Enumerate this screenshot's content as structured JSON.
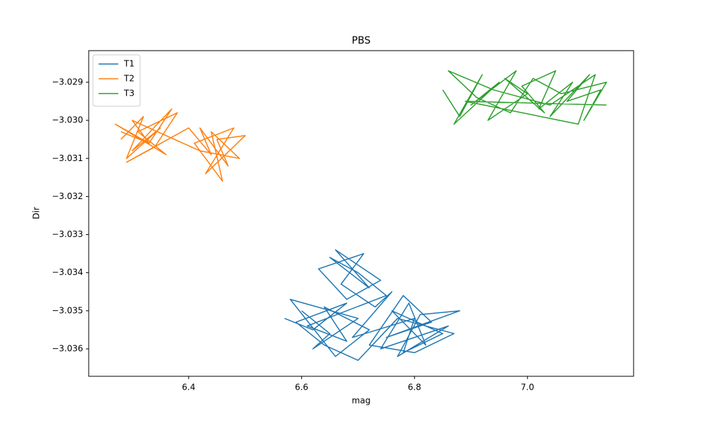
{
  "chart_data": {
    "type": "line",
    "title": "PBS",
    "xlabel": "mag",
    "ylabel": "Dir",
    "xlim": [
      6.223,
      7.188
    ],
    "ylim": [
      -3.03672,
      -3.02817
    ],
    "xticks": [
      6.4,
      6.6,
      6.8,
      {
        "value": 7,
        "label": "7.0"
      }
    ],
    "yticks": [
      {
        "value": -3.029,
        "label": "−3.029"
      },
      {
        "value": -3.03,
        "label": "−3.030"
      },
      {
        "value": -3.031,
        "label": "−3.031"
      },
      {
        "value": -3.032,
        "label": "−3.032"
      },
      {
        "value": -3.033,
        "label": "−3.033"
      },
      {
        "value": -3.034,
        "label": "−3.034"
      },
      {
        "value": -3.035,
        "label": "−3.035"
      },
      {
        "value": -3.036,
        "label": "−3.036"
      }
    ],
    "legend": "upper left",
    "series": [
      {
        "name": "T1",
        "color": "#1f77b4",
        "x": [
          6.6,
          6.65,
          6.62,
          6.7,
          6.58,
          6.66,
          6.72,
          6.64,
          6.68,
          6.61,
          6.75,
          6.7,
          6.65,
          6.72,
          6.66,
          6.7,
          6.74,
          6.68,
          6.63,
          6.71,
          6.67,
          6.73,
          6.76,
          6.69,
          6.8,
          6.78,
          6.85,
          6.76,
          6.82,
          6.79,
          6.74,
          6.86,
          6.77,
          6.81,
          6.88,
          6.75,
          6.83,
          6.78,
          6.72,
          6.8,
          6.87,
          6.77,
          6.7,
          6.64,
          6.59,
          6.68,
          6.62,
          6.57
        ],
        "values": [
          -3.035,
          -3.0356,
          -3.036,
          -3.0352,
          -3.0347,
          -3.0362,
          -3.0355,
          -3.0349,
          -3.0358,
          -3.0354,
          -3.0346,
          -3.034,
          -3.0336,
          -3.0344,
          -3.0334,
          -3.0338,
          -3.0342,
          -3.0347,
          -3.0339,
          -3.0335,
          -3.0343,
          -3.0349,
          -3.0345,
          -3.0357,
          -3.0352,
          -3.0361,
          -3.0356,
          -3.035,
          -3.0359,
          -3.0348,
          -3.036,
          -3.0354,
          -3.0362,
          -3.0351,
          -3.035,
          -3.0357,
          -3.0353,
          -3.0346,
          -3.0359,
          -3.0361,
          -3.0356,
          -3.0352,
          -3.0363,
          -3.0359,
          -3.0353,
          -3.0348,
          -3.0355,
          -3.0352
        ]
      },
      {
        "name": "T2",
        "color": "#ff7f0e",
        "x": [
          6.28,
          6.32,
          6.29,
          6.35,
          6.3,
          6.37,
          6.33,
          6.27,
          6.36,
          6.31,
          6.38,
          6.34,
          6.29,
          6.4,
          6.44,
          6.42,
          6.47,
          6.45,
          6.5,
          6.43,
          6.48,
          6.41,
          6.46,
          6.44,
          6.49,
          6.42,
          6.36,
          6.3,
          6.33,
          6.28
        ],
        "values": [
          -3.0305,
          -3.0299,
          -3.031,
          -3.0302,
          -3.0308,
          -3.0297,
          -3.0306,
          -3.0301,
          -3.0309,
          -3.0303,
          -3.0298,
          -3.0307,
          -3.0311,
          -3.0302,
          -3.0309,
          -3.0302,
          -3.0312,
          -3.0305,
          -3.0304,
          -3.0314,
          -3.0302,
          -3.0306,
          -3.0316,
          -3.0303,
          -3.031,
          -3.0308,
          -3.0304,
          -3.03,
          -3.0306,
          -3.0303
        ]
      },
      {
        "name": "T3",
        "color": "#2ca02c",
        "x": [
          6.85,
          6.88,
          6.92,
          6.87,
          6.95,
          6.9,
          6.98,
          6.93,
          7.0,
          6.96,
          7.03,
          6.99,
          7.05,
          7.02,
          7.08,
          7.04,
          7.11,
          7.07,
          7.13,
          7.1,
          7.14,
          7.06,
          7.01,
          6.97,
          6.91,
          6.86,
          6.94,
          7.04,
          7.12,
          7.09,
          6.89,
          7.14
        ],
        "values": [
          -3.0292,
          -3.0299,
          -3.0288,
          -3.0301,
          -3.029,
          -3.0296,
          -3.0287,
          -3.03,
          -3.0293,
          -3.0289,
          -3.0298,
          -3.0291,
          -3.0287,
          -3.0297,
          -3.029,
          -3.0299,
          -3.0288,
          -3.0295,
          -3.0292,
          -3.03,
          -3.029,
          -3.0293,
          -3.0289,
          -3.0298,
          -3.0294,
          -3.0287,
          -3.0292,
          -3.0296,
          -3.0288,
          -3.0301,
          -3.0295,
          -3.0296
        ]
      }
    ]
  }
}
